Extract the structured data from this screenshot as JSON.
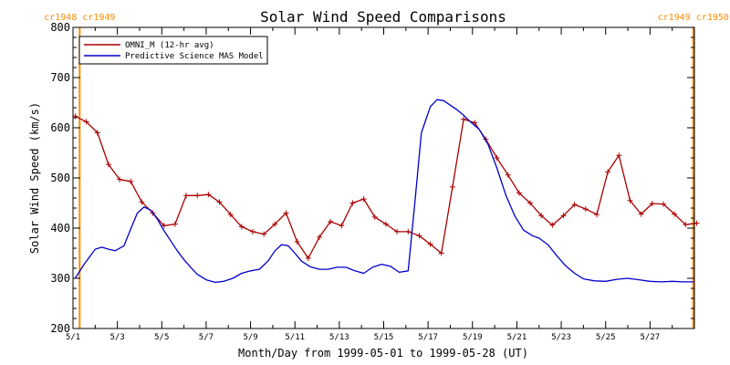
{
  "chart_data": {
    "type": "line",
    "title": "Solar Wind Speed Comparisons",
    "xlabel": "Month/Day from 1999-05-01 to 1999-05-28 (UT)",
    "ylabel": "Solar Wind Speed (km/s)",
    "xlim": [
      0,
      28
    ],
    "ylim": [
      200,
      800
    ],
    "yticks": [
      200,
      300,
      400,
      500,
      600,
      700,
      800
    ],
    "xtick_positions": [
      0,
      2,
      4,
      6,
      8,
      10,
      12,
      14,
      16,
      18,
      20,
      22,
      24,
      26
    ],
    "xtick_labels": [
      "5/1",
      "5/3",
      "5/5",
      "5/7",
      "5/9",
      "5/11",
      "5/13",
      "5/15",
      "5/17",
      "5/19",
      "5/21",
      "5/23",
      "5/25",
      "5/27"
    ],
    "carrington": [
      {
        "x": 0.3,
        "labels": [
          "cr1948",
          "cr1949"
        ]
      },
      {
        "x": 27.95,
        "labels": [
          "cr1949",
          "cr1950"
        ]
      }
    ],
    "carrington_color": "#ff8c00",
    "legend_position": "top-left",
    "series": [
      {
        "name": "OMNI_M (12-hr avg)",
        "color": "#aa0000",
        "markers": true,
        "x": [
          0.1,
          0.6,
          1.1,
          1.6,
          2.1,
          2.6,
          3.1,
          3.6,
          4.1,
          4.6,
          5.1,
          5.6,
          6.1,
          6.6,
          7.1,
          7.6,
          8.1,
          8.6,
          9.1,
          9.6,
          10.1,
          10.6,
          11.1,
          11.6,
          12.1,
          12.6,
          13.1,
          13.6,
          14.1,
          14.6,
          15.1,
          15.6,
          16.1,
          16.6,
          17.1,
          17.6,
          18.1,
          18.6,
          19.1,
          19.6,
          20.1,
          20.6,
          21.1,
          21.6,
          22.1,
          22.6,
          23.1,
          23.6,
          24.1,
          24.6,
          25.1,
          25.6,
          26.1,
          26.6,
          27.1,
          27.6,
          28.1
        ],
        "values": [
          623,
          612,
          590,
          527,
          497,
          493,
          452,
          430,
          405,
          408,
          465,
          465,
          467,
          452,
          427,
          403,
          393,
          388,
          408,
          430,
          373,
          340,
          382,
          413,
          405,
          450,
          458,
          422,
          408,
          393,
          393,
          385,
          368,
          350,
          482,
          617,
          610,
          577,
          540,
          506,
          470,
          450,
          425,
          406,
          425,
          447,
          438,
          427,
          512,
          545,
          455,
          428,
          449,
          448,
          428,
          407,
          410
        ]
      },
      {
        "name": "Predictive Science MAS Model",
        "color": "#0000cc",
        "markers": false,
        "x": [
          0.1,
          0.5,
          1.0,
          1.3,
          1.6,
          1.9,
          2.3,
          2.6,
          2.9,
          3.2,
          3.5,
          3.8,
          4.1,
          4.4,
          4.7,
          5.0,
          5.3,
          5.6,
          6.0,
          6.4,
          6.8,
          7.2,
          7.6,
          8.0,
          8.4,
          8.8,
          9.1,
          9.4,
          9.7,
          10.0,
          10.3,
          10.7,
          11.1,
          11.5,
          11.9,
          12.3,
          12.7,
          13.1,
          13.5,
          13.9,
          14.3,
          14.7,
          15.1,
          15.4,
          15.7,
          16.1,
          16.4,
          16.7,
          17.0,
          17.3,
          17.6,
          17.9,
          18.3,
          18.7,
          19.1,
          19.5,
          19.9,
          20.3,
          20.7,
          21.0,
          21.4,
          21.8,
          22.2,
          22.6,
          23.0,
          23.5,
          24.0,
          24.5,
          25.0,
          25.5,
          26.0,
          26.5,
          27.0,
          27.5,
          27.95
        ],
        "values": [
          300,
          328,
          358,
          362,
          358,
          355,
          365,
          398,
          430,
          442,
          436,
          418,
          395,
          375,
          355,
          337,
          322,
          308,
          297,
          292,
          294,
          300,
          310,
          315,
          318,
          335,
          355,
          367,
          365,
          350,
          334,
          323,
          318,
          318,
          322,
          322,
          315,
          310,
          322,
          328,
          324,
          312,
          315,
          450,
          590,
          642,
          656,
          654,
          645,
          636,
          625,
          612,
          597,
          567,
          520,
          466,
          425,
          396,
          385,
          380,
          367,
          345,
          325,
          310,
          299,
          295,
          294,
          298,
          300,
          297,
          294,
          293,
          294,
          293,
          293
        ]
      }
    ]
  }
}
